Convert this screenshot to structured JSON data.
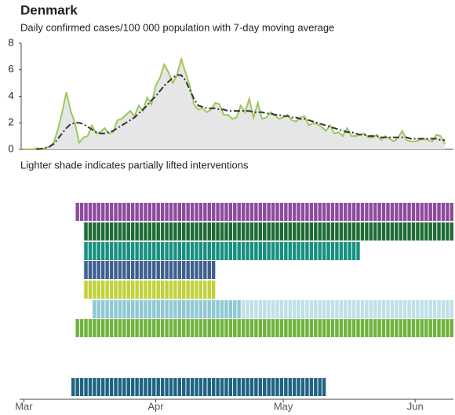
{
  "chart_data": [
    {
      "type": "area-line",
      "title": "Denmark",
      "subtitle": "Daily confirmed cases/100 000 population with 7-day moving average",
      "annotation": "Lighter shade indicates partially lifted interventions",
      "xlim": [
        -1,
        101
      ],
      "ylim": [
        0,
        8
      ],
      "yticks": [
        0,
        2,
        4,
        6,
        8
      ],
      "x": [
        0,
        1,
        2,
        3,
        4,
        5,
        6,
        7,
        8,
        9,
        10,
        11,
        12,
        13,
        14,
        15,
        16,
        17,
        18,
        19,
        20,
        21,
        22,
        23,
        24,
        25,
        26,
        27,
        28,
        29,
        30,
        31,
        32,
        33,
        34,
        35,
        36,
        37,
        38,
        39,
        40,
        41,
        42,
        43,
        44,
        45,
        46,
        47,
        48,
        49,
        50,
        51,
        52,
        53,
        54,
        55,
        56,
        57,
        58,
        59,
        60,
        61,
        62,
        63,
        64,
        65,
        66,
        67,
        68,
        69,
        70,
        71,
        72,
        73,
        74,
        75,
        76,
        77,
        78,
        79,
        80,
        81,
        82,
        83,
        84,
        85,
        86,
        87,
        88,
        89,
        90,
        91,
        92,
        93,
        94,
        95,
        96,
        97,
        98,
        99
      ],
      "series": [
        {
          "name": "Daily confirmed cases",
          "color": "#9cc85a",
          "fill": "#e6e6e6",
          "values": [
            0,
            0,
            0,
            0.1,
            0,
            0.1,
            0.2,
            0.5,
            1.5,
            2.8,
            4.3,
            2.9,
            2.0,
            0.5,
            0.9,
            1.0,
            1.8,
            1.2,
            1.3,
            1.6,
            1.2,
            1.3,
            2.2,
            2.3,
            2.6,
            2.9,
            2.5,
            3.3,
            2.9,
            3.9,
            3.4,
            4.8,
            5.4,
            6.4,
            5.8,
            5.0,
            5.6,
            6.8,
            5.8,
            4.8,
            3.4,
            3.0,
            3.1,
            2.8,
            3.0,
            3.5,
            3.4,
            2.6,
            2.6,
            2.3,
            2.4,
            3.3,
            2.8,
            3.8,
            2.4,
            3.5,
            2.3,
            2.4,
            2.8,
            2.6,
            2.3,
            2.4,
            2.6,
            2.2,
            2.1,
            2.4,
            2.5,
            1.8,
            2.0,
            1.9,
            1.7,
            1.4,
            1.8,
            1.2,
            1.3,
            1.0,
            1.6,
            1.0,
            1.0,
            1.1,
            1.2,
            0.9,
            0.9,
            1.1,
            0.7,
            1.0,
            0.8,
            0.6,
            0.9,
            1.4,
            0.7,
            0.6,
            0.6,
            0.7,
            0.8,
            0.7,
            0.6,
            1.1,
            1.0,
            0.4
          ]
        },
        {
          "name": "7-day moving average",
          "color": "#333333",
          "values": [
            null,
            null,
            null,
            0,
            0.05,
            0.1,
            0.2,
            0.4,
            0.8,
            1.2,
            1.6,
            1.9,
            2.0,
            2.0,
            1.9,
            1.7,
            1.5,
            1.3,
            1.2,
            1.2,
            1.3,
            1.4,
            1.6,
            1.8,
            2.0,
            2.2,
            2.4,
            2.7,
            3.0,
            3.3,
            3.7,
            4.0,
            4.4,
            4.8,
            5.1,
            5.4,
            5.6,
            5.6,
            5.2,
            4.5,
            3.8,
            3.3,
            3.2,
            3.1,
            3.1,
            3.1,
            3.0,
            3.0,
            2.9,
            2.9,
            2.9,
            2.9,
            2.9,
            2.9,
            2.8,
            2.8,
            2.8,
            2.7,
            2.7,
            2.6,
            2.6,
            2.5,
            2.5,
            2.4,
            2.4,
            2.3,
            2.3,
            2.2,
            2.1,
            2.0,
            1.9,
            1.8,
            1.7,
            1.6,
            1.5,
            1.4,
            1.3,
            1.3,
            1.2,
            1.1,
            1.1,
            1.0,
            1.0,
            1.0,
            0.9,
            0.9,
            0.9,
            0.9,
            0.9,
            0.9,
            0.9,
            0.8,
            0.8,
            0.8,
            0.8,
            0.8,
            0.8,
            0.8,
            0.7,
            0.7
          ]
        }
      ]
    },
    {
      "type": "timeline",
      "xlim": [
        -1,
        101
      ],
      "xticks": [
        {
          "value": 0,
          "label": "Mar"
        },
        {
          "value": 31,
          "label": "Apr"
        },
        {
          "value": 61,
          "label": "May"
        },
        {
          "value": 92,
          "label": "Jun"
        }
      ],
      "bars": [
        {
          "color": "#8e4a9e",
          "start": 12,
          "end": 101
        },
        {
          "color": "#1e6b35",
          "start": 14,
          "end": 101
        },
        {
          "color": "#16907f",
          "start": 14,
          "end": 79
        },
        {
          "color": "#3e5f8f",
          "start": 14,
          "end": 45
        },
        {
          "color": "#c0d23a",
          "start": 14,
          "end": 45
        },
        {
          "color": "#8fc8d1",
          "lighter_color": "#bfe0e6",
          "start": 16,
          "lifted": 51,
          "end": 101
        },
        {
          "color": "#6fb33c",
          "start": 12,
          "end": 101
        },
        {
          "color": "#1f6384",
          "start": 11,
          "end": 71
        }
      ]
    }
  ]
}
